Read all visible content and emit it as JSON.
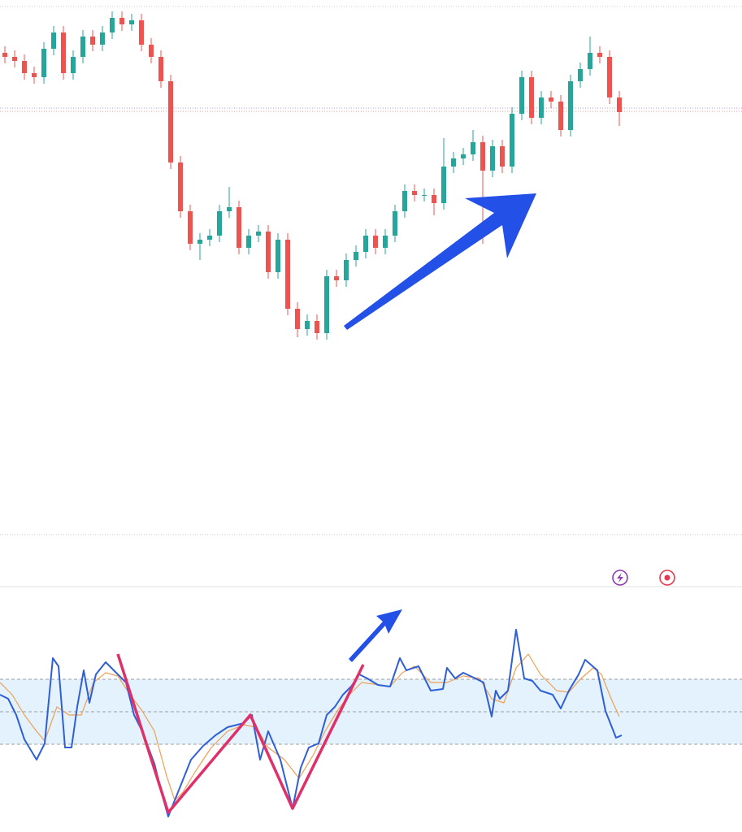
{
  "chart_data": [
    {
      "type": "candlestick",
      "ylim": [
        0,
        650
      ],
      "up_color": "#26a69a",
      "down_color": "#ef5350",
      "open": [
        595,
        590,
        585,
        570,
        565,
        600,
        620,
        570,
        590,
        615,
        605,
        620,
        638,
        630,
        635,
        605,
        590,
        560,
        460,
        400,
        360,
        365,
        370,
        400,
        405,
        355,
        370,
        375,
        325,
        365,
        280,
        255,
        265,
        250,
        320,
        315,
        340,
        350,
        370,
        355,
        370,
        400,
        425,
        420,
        420,
        410,
        455,
        465,
        470,
        485,
        450,
        480,
        455,
        520,
        565,
        515,
        540,
        535,
        500,
        560,
        575,
        595,
        590,
        540
      ],
      "high": [
        603,
        598,
        593,
        578,
        608,
        628,
        628,
        598,
        623,
        623,
        628,
        646,
        646,
        643,
        643,
        613,
        598,
        568,
        468,
        408,
        373,
        378,
        408,
        430,
        413,
        378,
        383,
        383,
        373,
        373,
        288,
        273,
        273,
        328,
        328,
        348,
        358,
        378,
        378,
        378,
        408,
        433,
        433,
        428,
        428,
        490,
        473,
        478,
        500,
        493,
        488,
        488,
        528,
        573,
        573,
        548,
        548,
        543,
        568,
        583,
        615,
        603,
        598,
        548
      ],
      "low": [
        582,
        577,
        562,
        557,
        557,
        592,
        562,
        562,
        582,
        597,
        597,
        612,
        622,
        622,
        597,
        582,
        552,
        452,
        392,
        352,
        340,
        357,
        362,
        392,
        347,
        347,
        362,
        317,
        317,
        272,
        245,
        247,
        242,
        242,
        307,
        307,
        332,
        342,
        347,
        347,
        362,
        392,
        412,
        412,
        395,
        402,
        447,
        457,
        462,
        360,
        442,
        447,
        447,
        512,
        507,
        507,
        527,
        492,
        492,
        552,
        567,
        582,
        532,
        505
      ],
      "close": [
        590,
        585,
        570,
        565,
        600,
        620,
        570,
        590,
        615,
        605,
        620,
        638,
        630,
        635,
        605,
        590,
        560,
        460,
        400,
        360,
        365,
        370,
        400,
        405,
        355,
        370,
        375,
        325,
        365,
        280,
        255,
        265,
        250,
        320,
        315,
        340,
        350,
        370,
        355,
        370,
        400,
        425,
        420,
        420,
        410,
        455,
        465,
        470,
        485,
        450,
        480,
        455,
        520,
        565,
        515,
        540,
        535,
        500,
        560,
        575,
        595,
        590,
        540,
        522
      ]
    },
    {
      "type": "line",
      "xlim": [
        0,
        913
      ],
      "ylim": [
        0,
        300
      ],
      "yticks": [
        108,
        148,
        188
      ],
      "band_color": "#e3f2fd",
      "series": [
        {
          "color": "#2f5fd8",
          "x": [
            0,
            10,
            20,
            30,
            45,
            55,
            65,
            72,
            80,
            88,
            95,
            103,
            110,
            118,
            130,
            140,
            155,
            165,
            175,
            190,
            200,
            207,
            215,
            225,
            235,
            250,
            265,
            280,
            300,
            310,
            320,
            330,
            345,
            360,
            370,
            380,
            392,
            402,
            412,
            422,
            432,
            442,
            452,
            465,
            480,
            492,
            500,
            515,
            530,
            545,
            550,
            560,
            570,
            585,
            595,
            605,
            610,
            615,
            625,
            635,
            645,
            655,
            665,
            680,
            690,
            700,
            712,
            720,
            735,
            745,
            758,
            765
          ],
          "values": [
            169,
            164,
            144,
            114,
            89,
            109,
            214,
            204,
            104,
            104,
            154,
            199,
            159,
            194,
            209,
            199,
            184,
            144,
            124,
            84,
            44,
            19,
            39,
            64,
            89,
            106,
            119,
            129,
            134,
            144,
            89,
            124,
            89,
            29,
            79,
            104,
            109,
            144,
            154,
            169,
            179,
            194,
            189,
            181,
            179,
            214,
            199,
            204,
            174,
            176,
            202,
            189,
            196,
            189,
            184,
            142,
            174,
            164,
            174,
            249,
            189,
            186,
            174,
            169,
            152,
            174,
            194,
            212,
            199,
            149,
            116,
            119
          ]
        },
        {
          "color": "#f0a050",
          "x": [
            0,
            15,
            30,
            45,
            55,
            70,
            85,
            100,
            115,
            130,
            145,
            160,
            175,
            190,
            205,
            215,
            225,
            240,
            260,
            280,
            300,
            315,
            330,
            350,
            368,
            385,
            400,
            415,
            430,
            445,
            460,
            480,
            495,
            510,
            530,
            550,
            570,
            590,
            605,
            620,
            635,
            650,
            665,
            685,
            700,
            715,
            730,
            740,
            752,
            762
          ],
          "values": [
            184,
            169,
            144,
            124,
            112,
            154,
            144,
            144,
            184,
            196,
            192,
            169,
            149,
            124,
            69,
            39,
            49,
            74,
            104,
            124,
            132,
            129,
            104,
            89,
            66,
            94,
            124,
            149,
            169,
            184,
            182,
            179,
            196,
            204,
            184,
            184,
            192,
            189,
            164,
            159,
            202,
            219,
            194,
            174,
            172,
            189,
            202,
            194,
            164,
            142
          ]
        }
      ]
    }
  ]
}
